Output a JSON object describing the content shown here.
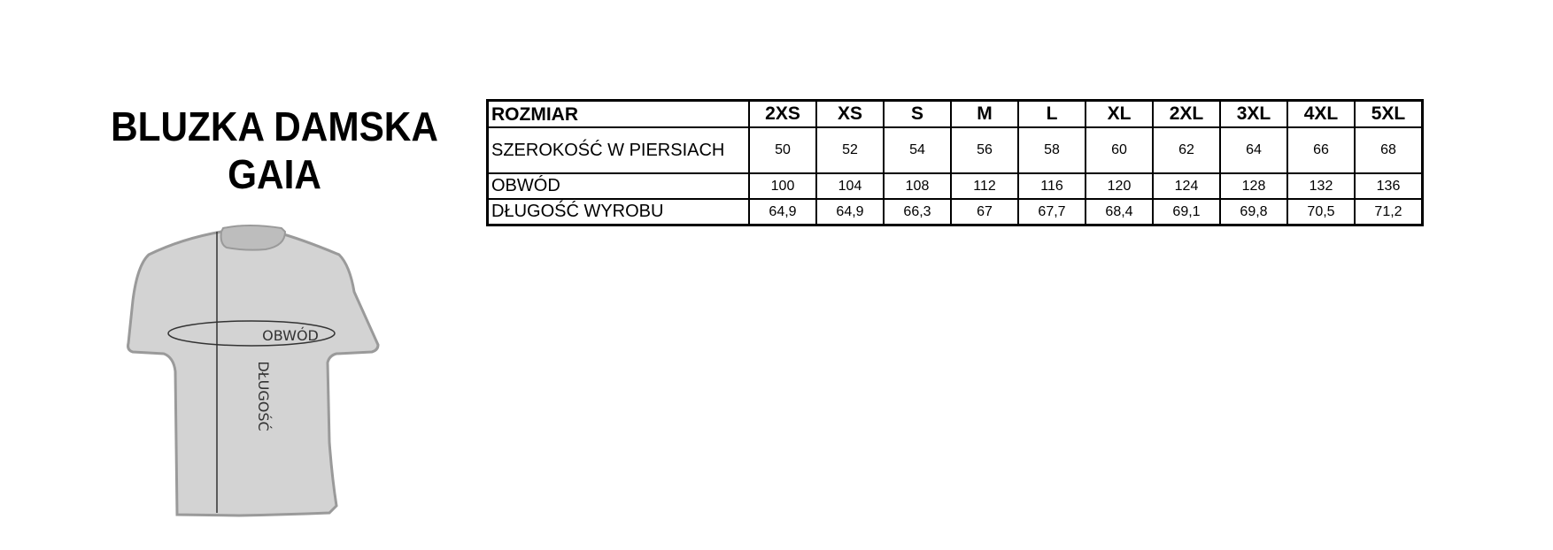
{
  "title_lines": [
    "BLUZKA DAMSKA",
    "GAIA"
  ],
  "diagram": {
    "girth_label": "OBWÓD",
    "length_label": "DŁUGOŚĆ"
  },
  "table": {
    "header": {
      "label": "ROZMIAR",
      "sizes": [
        "2XS",
        "XS",
        "S",
        "M",
        "L",
        "XL",
        "2XL",
        "3XL",
        "4XL",
        "5XL"
      ]
    },
    "rows": [
      {
        "label": "SZEROKOŚĆ W PIERSIACH",
        "values": [
          "50",
          "52",
          "54",
          "56",
          "58",
          "60",
          "62",
          "64",
          "66",
          "68"
        ]
      },
      {
        "label": "OBWÓD",
        "values": [
          "100",
          "104",
          "108",
          "112",
          "116",
          "120",
          "124",
          "128",
          "132",
          "136"
        ]
      },
      {
        "label": "DŁUGOŚĆ WYROBU",
        "values": [
          "64,9",
          "64,9",
          "66,3",
          "67",
          "67,7",
          "68,4",
          "69,1",
          "69,8",
          "70,5",
          "71,2"
        ]
      }
    ]
  },
  "colors": {
    "shirt_fill": "#d3d3d3",
    "shirt_outline": "#9a9a9a"
  }
}
